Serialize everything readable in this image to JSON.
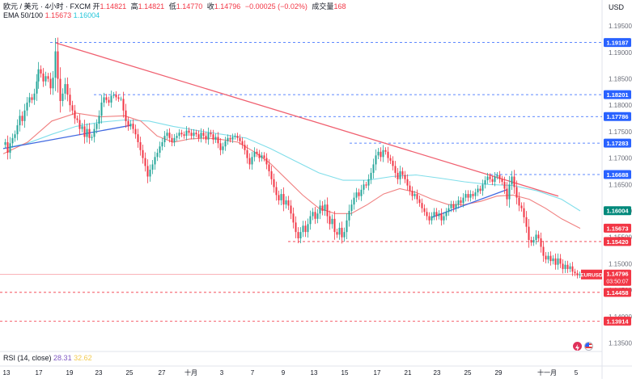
{
  "header": {
    "symbol": "欧元 / 美元 · 4小时 · FXCM",
    "ohlc": [
      {
        "key": "开",
        "value": "1.14821"
      },
      {
        "key": "高",
        "value": "1.14821"
      },
      {
        "key": "低",
        "value": "1.14770"
      },
      {
        "key": "收",
        "value": "1.14796"
      }
    ],
    "change": "−0.00025 (−0.02%)",
    "volume_label": "成交量",
    "volume_value": "168",
    "ema_label": "EMA 50/100",
    "ema50_value": "1.15673",
    "ema100_value": "1.16004",
    "rsi_label": "RSI (14, close)",
    "rsi_value": "28.31",
    "rsi_ma_value": "32.62",
    "currency": "USD"
  },
  "colors": {
    "up": "#26a69a",
    "down": "#f23645",
    "ema50": "#f08080",
    "ema100": "#80deea",
    "trendline_down": "#f06070",
    "trendline_up": "#4169e1",
    "level_blue": "#2962ff",
    "level_red": "#f23645"
  },
  "icons": [
    "flash-icon",
    "us-flag-icon"
  ],
  "chart_data": {
    "type": "candlestick",
    "symbol": "EURUSD",
    "ylim": [
      1.134,
      1.199
    ],
    "y_ticks": [
      "1.19500",
      "1.19000",
      "1.18500",
      "1.18000",
      "1.17500",
      "1.17000",
      "1.16500",
      "1.16000",
      "1.15500",
      "1.15000",
      "1.14500",
      "1.14000",
      "1.13500"
    ],
    "x_ticks": [
      "13",
      "17",
      "19",
      "23",
      "25",
      "27",
      "十月",
      "3",
      "7",
      "9",
      "13",
      "15",
      "17",
      "21",
      "23",
      "25",
      "29",
      "十一月",
      "5"
    ],
    "current_price": "1.14796",
    "countdown": "03:50:07",
    "levels": [
      {
        "label": "1.19187",
        "value": 1.19187,
        "style": "blue-dashed"
      },
      {
        "label": "1.18201",
        "value": 1.18201,
        "style": "blue-dashed"
      },
      {
        "label": "1.17786",
        "value": 1.17786,
        "style": "blue-dashed"
      },
      {
        "label": "1.17283",
        "value": 1.17283,
        "style": "blue-dashed"
      },
      {
        "label": "1.16688",
        "value": 1.16688,
        "style": "blue-dashed"
      },
      {
        "label": "1.16004",
        "value": 1.16004,
        "style": "ema100-tag"
      },
      {
        "label": "1.15673",
        "value": 1.15673,
        "style": "ema50-tag"
      },
      {
        "label": "1.15420",
        "value": 1.1542,
        "style": "red-dashed"
      },
      {
        "label": "1.14458",
        "value": 1.14458,
        "style": "red-dashed"
      },
      {
        "label": "1.13914",
        "value": 1.13914,
        "style": "red-dashed"
      }
    ],
    "price_path": [
      [
        0,
        1.1725
      ],
      [
        3,
        1.173
      ],
      [
        6,
        1.171
      ],
      [
        9,
        1.1728
      ],
      [
        12,
        1.1738
      ],
      [
        15,
        1.1745
      ],
      [
        18,
        1.1762
      ],
      [
        21,
        1.178
      ],
      [
        24,
        1.177
      ],
      [
        27,
        1.179
      ],
      [
        30,
        1.1805
      ],
      [
        33,
        1.1815
      ],
      [
        36,
        1.181
      ],
      [
        39,
        1.1822
      ],
      [
        42,
        1.1845
      ],
      [
        44,
        1.1868
      ],
      [
        47,
        1.186
      ],
      [
        50,
        1.1845
      ],
      [
        53,
        1.1855
      ],
      [
        56,
        1.185
      ],
      [
        59,
        1.1832
      ],
      [
        62,
        1.1852
      ],
      [
        65,
        1.1902
      ],
      [
        68,
        1.185
      ],
      [
        71,
        1.1808
      ],
      [
        74,
        1.1822
      ],
      [
        77,
        1.184
      ],
      [
        80,
        1.182
      ],
      [
        83,
        1.18
      ],
      [
        86,
        1.179
      ],
      [
        89,
        1.1775
      ],
      [
        92,
        1.1772
      ],
      [
        95,
        1.1755
      ],
      [
        98,
        1.176
      ],
      [
        101,
        1.174
      ],
      [
        104,
        1.1755
      ],
      [
        107,
        1.1738
      ],
      [
        110,
        1.174
      ],
      [
        113,
        1.1755
      ],
      [
        116,
        1.1765
      ],
      [
        119,
        1.178
      ],
      [
        122,
        1.1805
      ],
      [
        125,
        1.1815
      ],
      [
        128,
        1.181
      ],
      [
        131,
        1.1805
      ],
      [
        134,
        1.1818
      ],
      [
        137,
        1.182
      ],
      [
        140,
        1.1815
      ],
      [
        143,
        1.1812
      ],
      [
        146,
        1.1812
      ],
      [
        149,
        1.179
      ],
      [
        152,
        1.177
      ],
      [
        155,
        1.176
      ],
      [
        158,
        1.1765
      ],
      [
        161,
        1.1755
      ],
      [
        164,
        1.1745
      ],
      [
        167,
        1.173
      ],
      [
        170,
        1.1715
      ],
      [
        173,
        1.17
      ],
      [
        176,
        1.1685
      ],
      [
        179,
        1.1665
      ],
      [
        182,
        1.1678
      ],
      [
        185,
        1.1688
      ],
      [
        188,
        1.1702
      ],
      [
        191,
        1.171
      ],
      [
        194,
        1.1722
      ],
      [
        197,
        1.173
      ],
      [
        200,
        1.1742
      ],
      [
        203,
        1.1748
      ],
      [
        206,
        1.1738
      ],
      [
        209,
        1.173
      ],
      [
        212,
        1.1738
      ],
      [
        215,
        1.1742
      ],
      [
        218,
        1.1748
      ],
      [
        221,
        1.1745
      ],
      [
        224,
        1.1742
      ],
      [
        227,
        1.1752
      ],
      [
        230,
        1.1748
      ],
      [
        233,
        1.1742
      ],
      [
        236,
        1.1748
      ],
      [
        239,
        1.1745
      ],
      [
        242,
        1.1738
      ],
      [
        245,
        1.1748
      ],
      [
        248,
        1.1742
      ],
      [
        251,
        1.1735
      ],
      [
        254,
        1.1748
      ],
      [
        257,
        1.1745
      ],
      [
        260,
        1.1735
      ],
      [
        263,
        1.174
      ],
      [
        266,
        1.1728
      ],
      [
        269,
        1.1715
      ],
      [
        272,
        1.1722
      ],
      [
        275,
        1.1732
      ],
      [
        278,
        1.1738
      ],
      [
        281,
        1.1735
      ],
      [
        284,
        1.174
      ],
      [
        287,
        1.1742
      ],
      [
        290,
        1.1738
      ],
      [
        293,
        1.1732
      ],
      [
        296,
        1.1725
      ],
      [
        299,
        1.1715
      ],
      [
        302,
        1.17
      ],
      [
        305,
        1.1688
      ],
      [
        308,
        1.1702
      ],
      [
        311,
        1.1712
      ],
      [
        314,
        1.1708
      ],
      [
        317,
        1.17
      ],
      [
        320,
        1.1705
      ],
      [
        323,
        1.17
      ],
      [
        326,
        1.1688
      ],
      [
        329,
        1.1675
      ],
      [
        332,
        1.166
      ],
      [
        335,
        1.1645
      ],
      [
        338,
        1.163
      ],
      [
        341,
        1.162
      ],
      [
        344,
        1.1632
      ],
      [
        347,
        1.1612
      ],
      [
        350,
        1.162
      ],
      [
        353,
        1.161
      ],
      [
        356,
        1.1595
      ],
      [
        359,
        1.1578
      ],
      [
        362,
        1.156
      ],
      [
        365,
        1.1548
      ],
      [
        368,
        1.156
      ],
      [
        371,
        1.1572
      ],
      [
        374,
        1.156
      ],
      [
        377,
        1.1575
      ],
      [
        380,
        1.159
      ],
      [
        383,
        1.1598
      ],
      [
        386,
        1.1585
      ],
      [
        389,
        1.1595
      ],
      [
        392,
        1.161
      ],
      [
        395,
        1.16
      ],
      [
        398,
        1.1612
      ],
      [
        401,
        1.159
      ],
      [
        404,
        1.1575
      ],
      [
        407,
        1.1585
      ],
      [
        410,
        1.156
      ],
      [
        413,
        1.1555
      ],
      [
        416,
        1.1568
      ],
      [
        419,
        1.155
      ],
      [
        422,
        1.156
      ],
      [
        425,
        1.1582
      ],
      [
        428,
        1.16
      ],
      [
        431,
        1.1612
      ],
      [
        434,
        1.1625
      ],
      [
        437,
        1.1635
      ],
      [
        440,
        1.1628
      ],
      [
        443,
        1.164
      ],
      [
        446,
        1.165
      ],
      [
        449,
        1.1648
      ],
      [
        452,
        1.166
      ],
      [
        455,
        1.1672
      ],
      [
        458,
        1.1688
      ],
      [
        461,
        1.1705
      ],
      [
        464,
        1.1712
      ],
      [
        467,
        1.1702
      ],
      [
        470,
        1.1715
      ],
      [
        473,
        1.1712
      ],
      [
        476,
        1.17
      ],
      [
        479,
        1.1695
      ],
      [
        482,
        1.1685
      ],
      [
        485,
        1.1672
      ],
      [
        488,
        1.166
      ],
      [
        491,
        1.1675
      ],
      [
        494,
        1.1668
      ],
      [
        497,
        1.166
      ],
      [
        500,
        1.1648
      ],
      [
        503,
        1.1638
      ],
      [
        506,
        1.1628
      ],
      [
        509,
        1.1632
      ],
      [
        512,
        1.1622
      ],
      [
        515,
        1.1615
      ],
      [
        518,
        1.1605
      ],
      [
        521,
        1.1598
      ],
      [
        524,
        1.159
      ],
      [
        527,
        1.1582
      ],
      [
        530,
        1.159
      ],
      [
        533,
        1.1598
      ],
      [
        536,
        1.159
      ],
      [
        539,
        1.1595
      ],
      [
        542,
        1.1582
      ],
      [
        545,
        1.159
      ],
      [
        548,
        1.1598
      ],
      [
        551,
        1.1605
      ],
      [
        554,
        1.1612
      ],
      [
        557,
        1.1605
      ],
      [
        560,
        1.1612
      ],
      [
        563,
        1.162
      ],
      [
        566,
        1.1615
      ],
      [
        569,
        1.1625
      ],
      [
        572,
        1.1632
      ],
      [
        575,
        1.1625
      ],
      [
        578,
        1.1632
      ],
      [
        581,
        1.1628
      ],
      [
        584,
        1.1635
      ],
      [
        587,
        1.1642
      ],
      [
        590,
        1.1638
      ],
      [
        593,
        1.165
      ],
      [
        596,
        1.1658
      ],
      [
        599,
        1.1665
      ],
      [
        602,
        1.166
      ],
      [
        605,
        1.1655
      ],
      [
        608,
        1.1665
      ],
      [
        611,
        1.1668
      ],
      [
        614,
        1.166
      ],
      [
        617,
        1.1655
      ],
      [
        620,
        1.1642
      ],
      [
        623,
        1.1622
      ],
      [
        626,
        1.165
      ],
      [
        629,
        1.1665
      ],
      [
        632,
        1.1645
      ],
      [
        635,
        1.1625
      ],
      [
        638,
        1.161
      ],
      [
        641,
        1.1605
      ],
      [
        644,
        1.1588
      ],
      [
        647,
        1.157
      ],
      [
        650,
        1.1545
      ],
      [
        653,
        1.154
      ],
      [
        656,
        1.1545
      ],
      [
        659,
        1.1555
      ],
      [
        662,
        1.1548
      ],
      [
        665,
        1.1532
      ],
      [
        668,
        1.1515
      ],
      [
        671,
        1.1508
      ],
      [
        674,
        1.1515
      ],
      [
        677,
        1.1505
      ],
      [
        680,
        1.151
      ],
      [
        683,
        1.1498
      ],
      [
        686,
        1.151
      ],
      [
        689,
        1.15
      ],
      [
        692,
        1.149
      ],
      [
        695,
        1.1498
      ],
      [
        698,
        1.149
      ],
      [
        701,
        1.1495
      ],
      [
        704,
        1.1485
      ],
      [
        707,
        1.1482
      ],
      [
        710,
        1.1478
      ],
      [
        713,
        1.148
      ]
    ],
    "ema50": [
      [
        0,
        1.1708
      ],
      [
        30,
        1.173
      ],
      [
        60,
        1.177
      ],
      [
        90,
        1.1785
      ],
      [
        120,
        1.1778
      ],
      [
        150,
        1.178
      ],
      [
        170,
        1.177
      ],
      [
        190,
        1.1742
      ],
      [
        210,
        1.173
      ],
      [
        230,
        1.1736
      ],
      [
        250,
        1.1738
      ],
      [
        270,
        1.1735
      ],
      [
        290,
        1.173
      ],
      [
        310,
        1.1712
      ],
      [
        330,
        1.169
      ],
      [
        350,
        1.166
      ],
      [
        370,
        1.163
      ],
      [
        390,
        1.1605
      ],
      [
        410,
        1.1595
      ],
      [
        430,
        1.1595
      ],
      [
        450,
        1.1612
      ],
      [
        470,
        1.1632
      ],
      [
        490,
        1.1642
      ],
      [
        510,
        1.1635
      ],
      [
        530,
        1.1622
      ],
      [
        550,
        1.1612
      ],
      [
        570,
        1.1612
      ],
      [
        590,
        1.1618
      ],
      [
        610,
        1.1628
      ],
      [
        630,
        1.163
      ],
      [
        650,
        1.1622
      ],
      [
        670,
        1.1605
      ],
      [
        690,
        1.1585
      ],
      [
        713,
        1.1567
      ]
    ],
    "ema100": [
      [
        0,
        1.1718
      ],
      [
        30,
        1.1728
      ],
      [
        60,
        1.1745
      ],
      [
        90,
        1.176
      ],
      [
        120,
        1.1768
      ],
      [
        150,
        1.1772
      ],
      [
        180,
        1.177
      ],
      [
        210,
        1.176
      ],
      [
        240,
        1.1752
      ],
      [
        270,
        1.1745
      ],
      [
        300,
        1.1738
      ],
      [
        330,
        1.1718
      ],
      [
        360,
        1.1695
      ],
      [
        390,
        1.1672
      ],
      [
        420,
        1.1658
      ],
      [
        450,
        1.1658
      ],
      [
        480,
        1.1665
      ],
      [
        510,
        1.1668
      ],
      [
        540,
        1.1662
      ],
      [
        570,
        1.1655
      ],
      [
        600,
        1.165
      ],
      [
        630,
        1.1648
      ],
      [
        660,
        1.1638
      ],
      [
        690,
        1.1622
      ],
      [
        713,
        1.16
      ]
    ],
    "trendlines": [
      {
        "role": "down",
        "from": [
          65,
          1.1918
        ],
        "to": [
          686,
          1.1628
        ]
      },
      {
        "role": "up",
        "from": [
          0,
          1.1718
        ],
        "to": [
          158,
          1.1762
        ]
      },
      {
        "role": "up",
        "from": [
          530,
          1.1588
        ],
        "to": [
          622,
          1.164
        ]
      }
    ]
  }
}
